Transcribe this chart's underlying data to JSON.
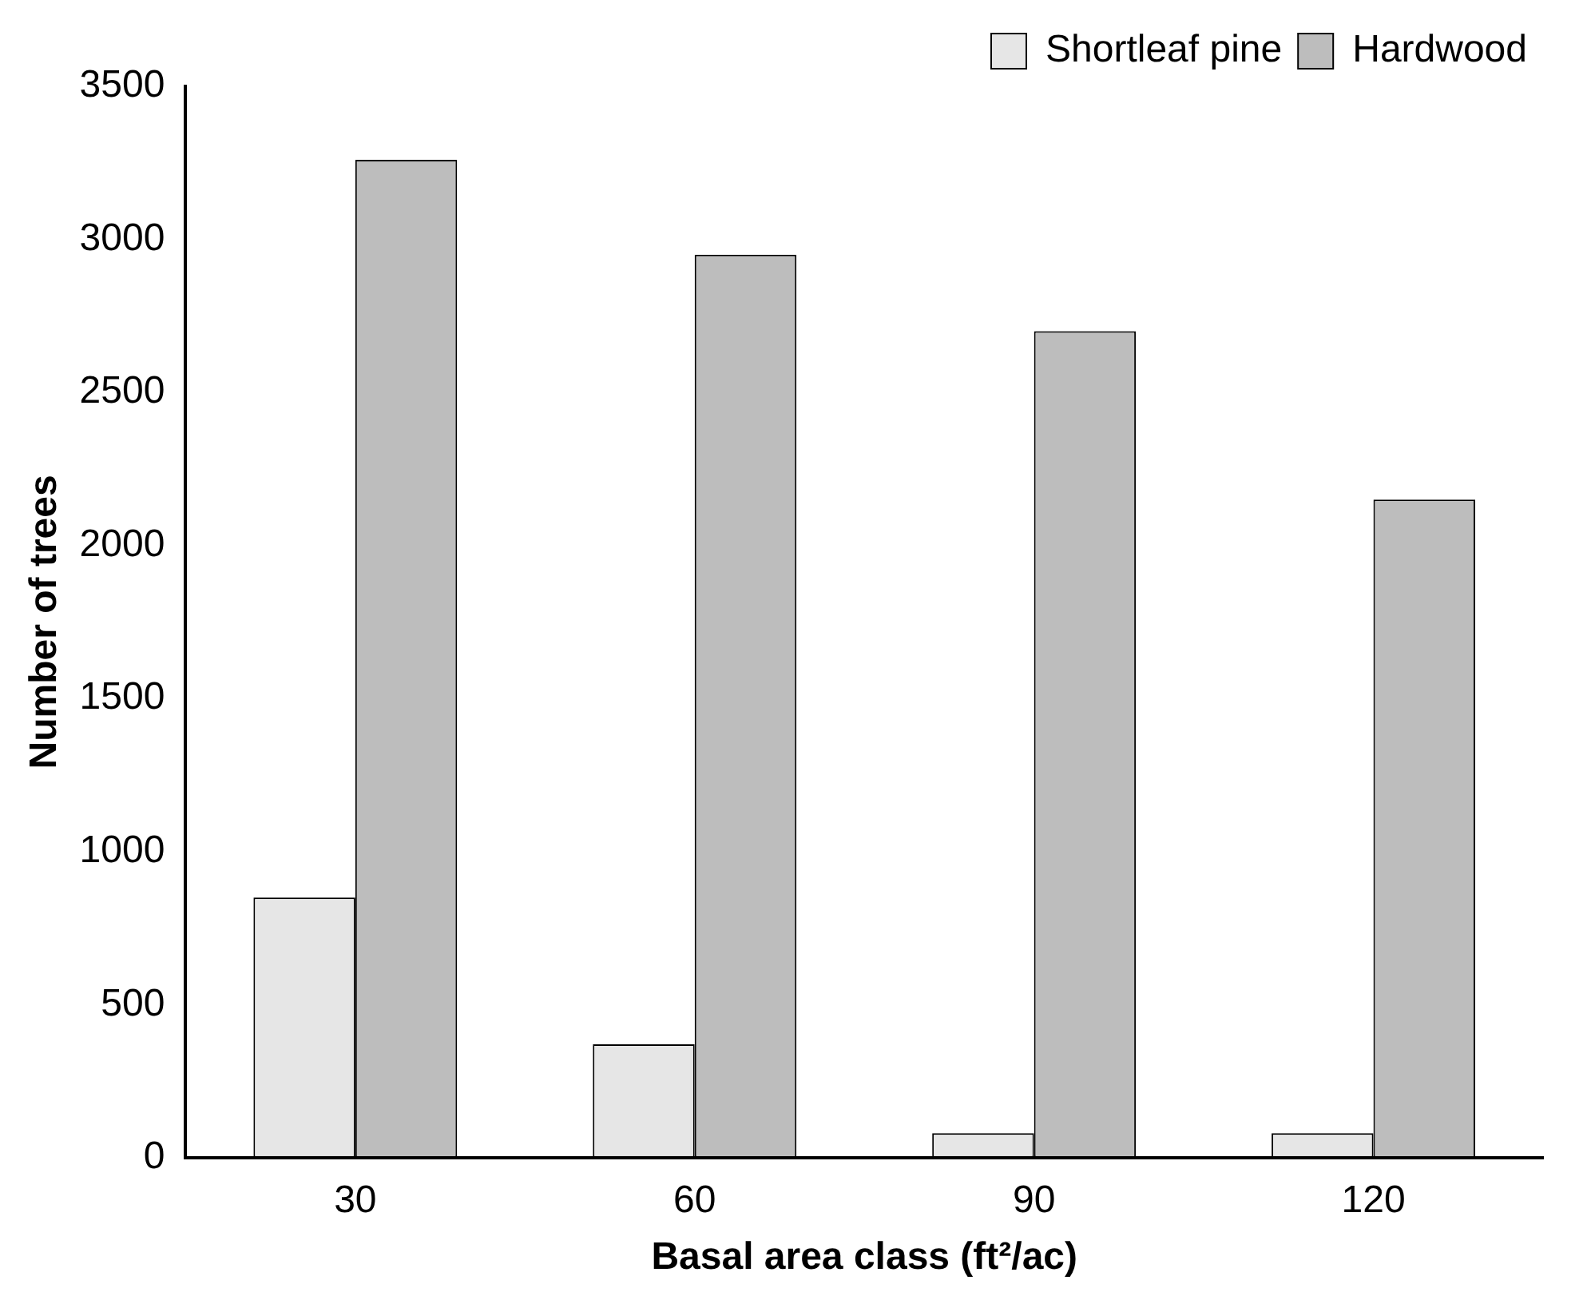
{
  "chart_data": {
    "type": "bar",
    "xlabel": "Basal area class (ft²/ac)",
    "ylabel": "Number of trees",
    "categories": [
      "30",
      "60",
      "90",
      "120"
    ],
    "series": [
      {
        "name": "Shortleaf pine",
        "color": "#e6e6e6",
        "values": [
          850,
          370,
          80,
          80
        ]
      },
      {
        "name": "Hardwood",
        "color": "#bdbdbd",
        "values": [
          3260,
          2950,
          2700,
          2150
        ]
      }
    ],
    "ylim": [
      0,
      3500
    ],
    "yticks": [
      0,
      500,
      1000,
      1500,
      2000,
      2500,
      3000,
      3500
    ],
    "grid": false,
    "legend": "top right"
  }
}
